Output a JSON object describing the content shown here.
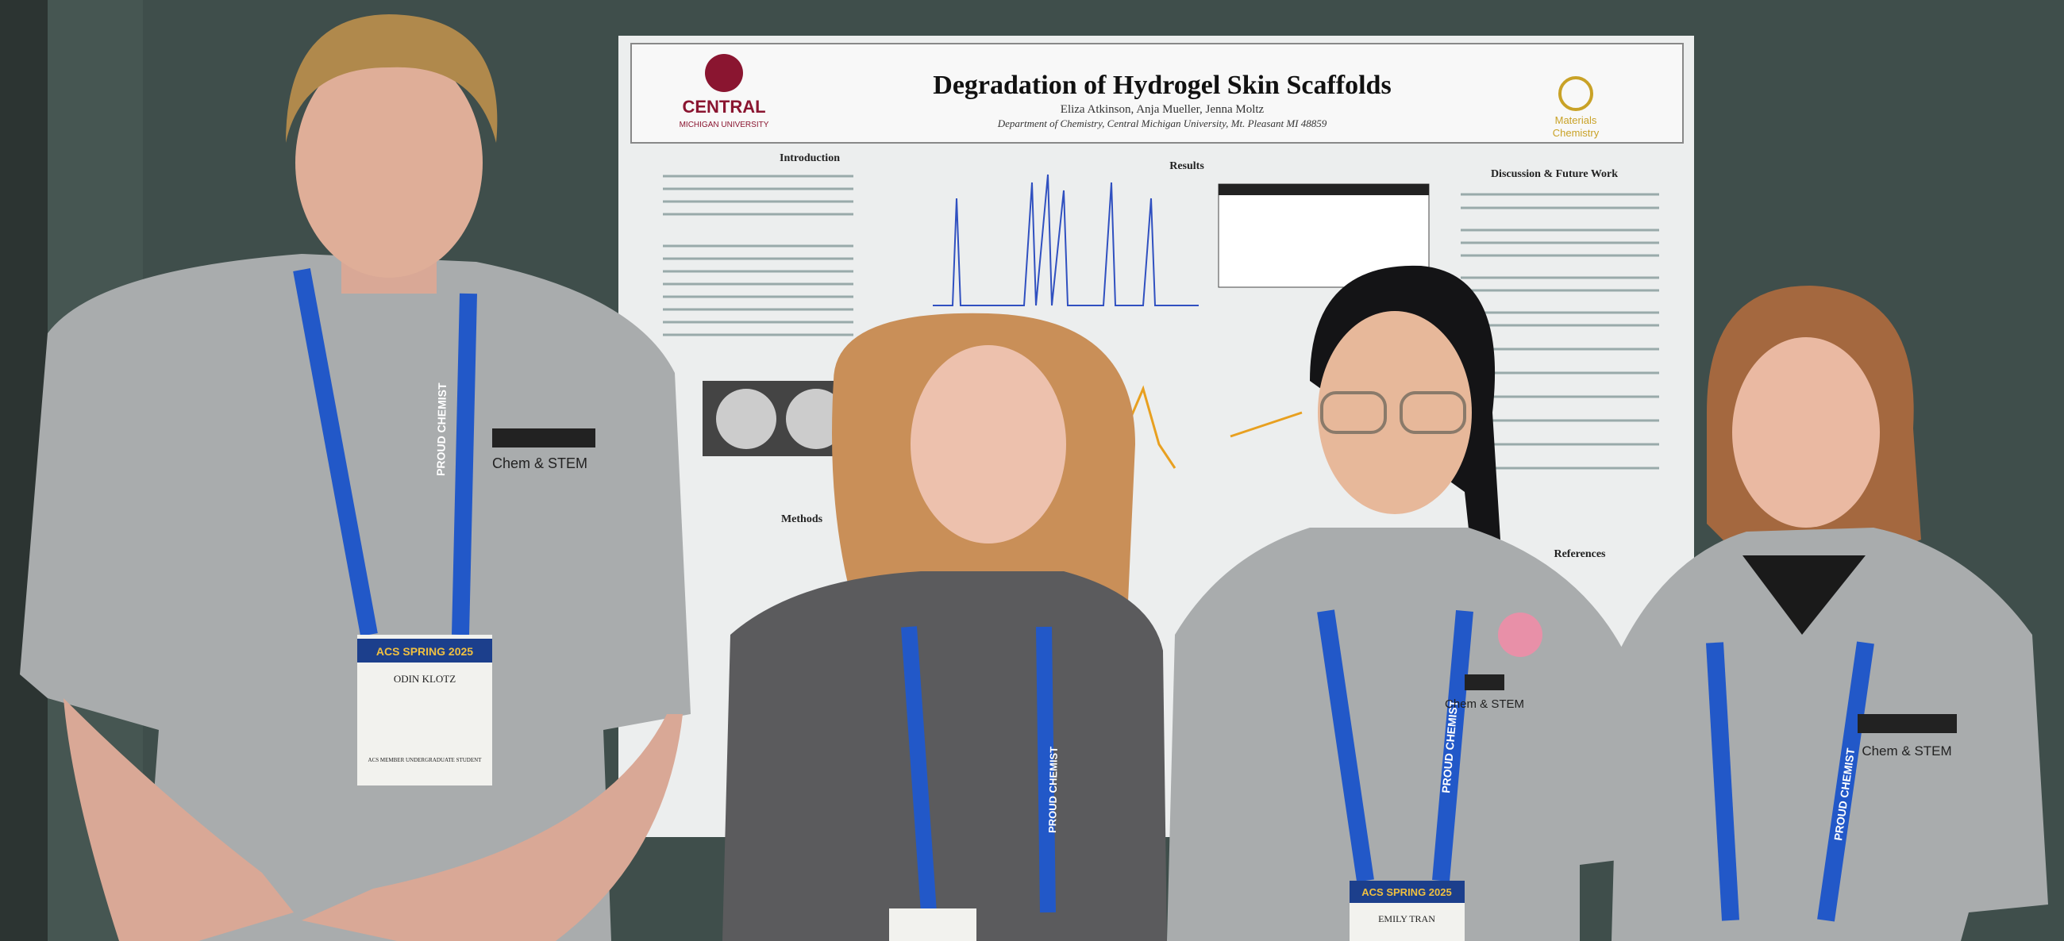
{
  "poster": {
    "university": "CENTRAL",
    "university_sub": "MICHIGAN UNIVERSITY",
    "title": "Degradation of Hydrogel Skin Scaffolds",
    "authors": "Eliza Atkinson, Anja Mueller, Jenna Moltz",
    "affiliation": "Department of Chemistry, Central Michigan University, Mt. Pleasant MI 48859",
    "logo_right": [
      "Materials",
      "Chemistry"
    ],
    "sections": {
      "introduction": "Introduction",
      "results": "Results",
      "discussion": "Discussion & Future Work",
      "methods": "Methods",
      "references": "References"
    }
  },
  "people": [
    {
      "shirt_logo": "Chem & STEM",
      "badge_event": "ACS SPRING 2025",
      "badge_name": "ODIN KLOTZ",
      "badge_role": "ACS MEMBER UNDERGRADUATE STUDENT",
      "lanyard": "PROUD CHEMIST"
    },
    {
      "lanyard": "PROUD CHEMIST"
    },
    {
      "shirt_logo": "Chem & STEM",
      "badge_event": "ACS SPRING 2025",
      "badge_name": "EMILY TRAN",
      "lanyard": "PROUD CHEMIST"
    },
    {
      "shirt_logo": "Chem & STEM",
      "lanyard": "PROUD CHEMIST"
    }
  ]
}
